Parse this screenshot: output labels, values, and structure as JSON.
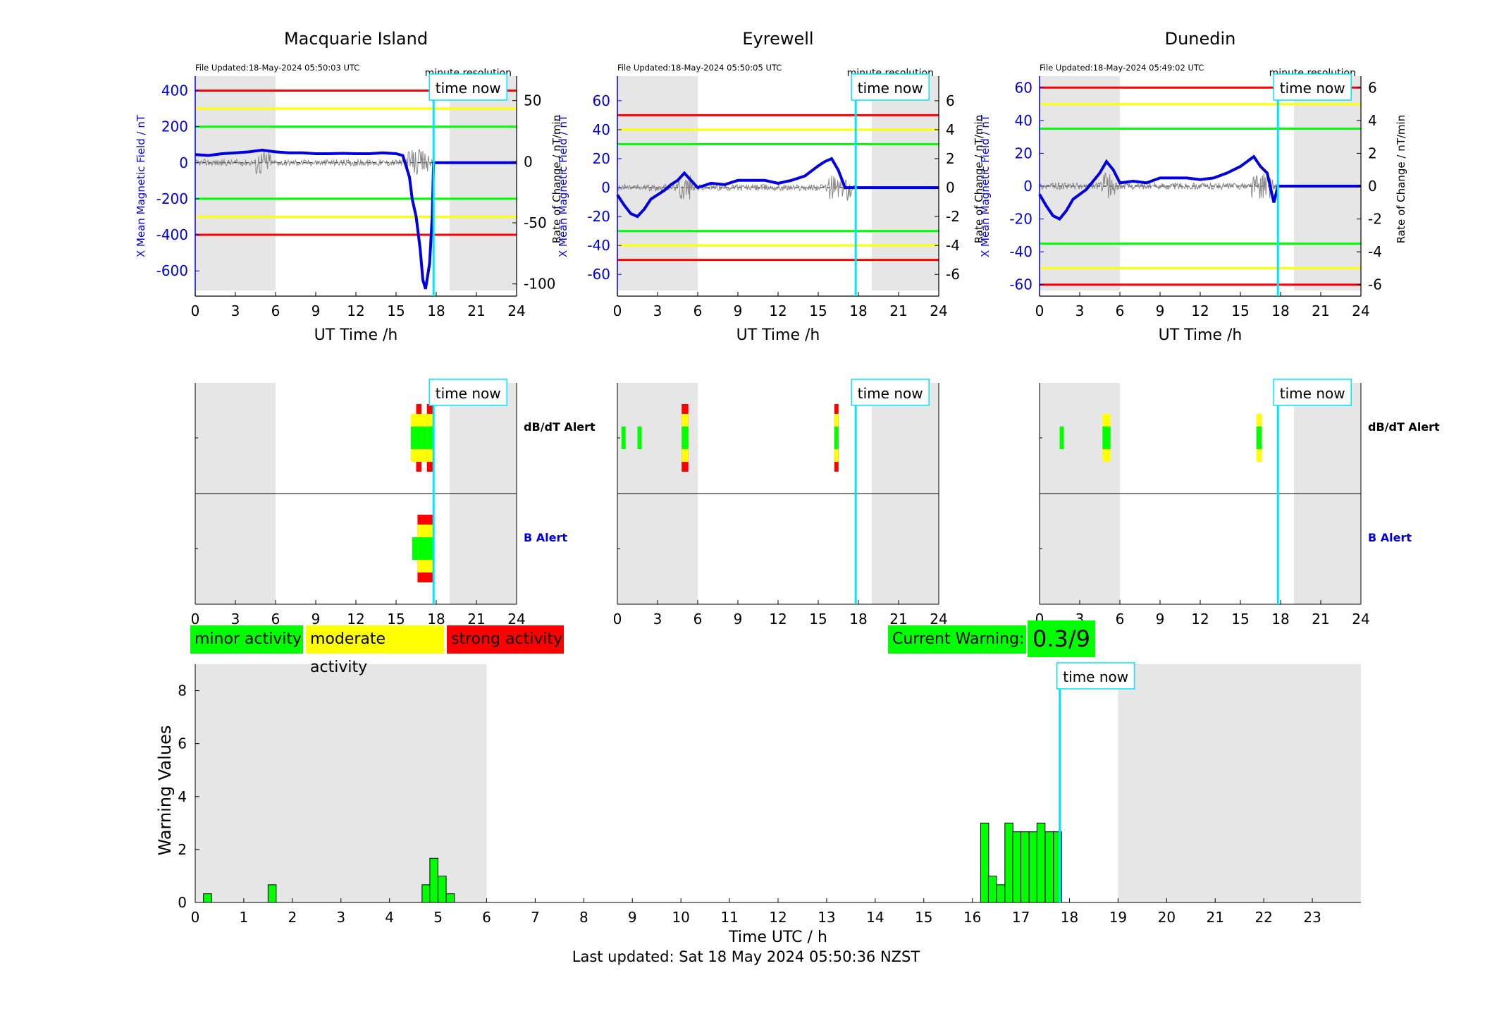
{
  "stations": [
    {
      "title": "Macquarie Island",
      "file_updated": "File Updated:18-May-2024 05:50:03 UTC",
      "resolution": "minute resolution",
      "left_label": "X Mean Magnetic Field / nT",
      "right_label": "Rate of Change / nT/min",
      "xlabel": "UT Time /h",
      "left_ticks": [
        "400",
        "200",
        "0",
        "-200",
        "-400",
        "-600"
      ],
      "right_ticks": [
        "50",
        "0",
        "-50",
        "-100"
      ],
      "x_ticks": [
        "0",
        "3",
        "6",
        "9",
        "12",
        "15",
        "18",
        "21",
        "24"
      ],
      "time_now": "time now",
      "alert_label_dbdt": "dB/dT Alert",
      "alert_label_b": "B Alert",
      "chart_data": {
        "type": "line",
        "xlim": [
          0,
          24
        ],
        "ylim_left": [
          -740,
          480
        ],
        "ylim_right_approx": [
          -110,
          70
        ],
        "thresholds_left": {
          "red": [
            400,
            -400
          ],
          "yellow": [
            300,
            -300
          ],
          "green": [
            200,
            -200
          ]
        },
        "time_now_h": 17.8,
        "night_shading_h": [
          [
            0,
            6
          ],
          [
            19,
            24
          ]
        ],
        "series": [
          {
            "name": "X Mean Magnetic Field",
            "color": "#0000e0",
            "x": [
              0,
              1,
              2,
              3,
              4,
              5,
              6,
              7,
              8,
              9,
              10,
              11,
              12,
              13,
              14,
              15,
              15.5,
              16,
              16.2,
              16.5,
              16.8,
              17,
              17.2,
              17.5,
              17.7,
              17.8,
              18,
              24
            ],
            "y": [
              45,
              40,
              50,
              55,
              60,
              70,
              60,
              55,
              55,
              50,
              50,
              52,
              50,
              50,
              55,
              50,
              40,
              -80,
              -200,
              -300,
              -480,
              -650,
              -700,
              -560,
              -300,
              0,
              0,
              0
            ]
          }
        ],
        "dbdt_alert": [
          {
            "start": 16.1,
            "end": 16.5,
            "level": "yellow"
          },
          {
            "start": 16.5,
            "end": 16.9,
            "level": "red"
          },
          {
            "start": 16.9,
            "end": 17.3,
            "level": "yellow"
          },
          {
            "start": 17.3,
            "end": 17.8,
            "level": "red"
          }
        ],
        "b_alert": [
          {
            "start": 16.2,
            "end": 16.6,
            "level": "green"
          },
          {
            "start": 16.6,
            "end": 17.8,
            "level": "red"
          }
        ]
      }
    },
    {
      "title": "Eyrewell",
      "file_updated": "File Updated:18-May-2024 05:50:05 UTC",
      "resolution": "minute resolution",
      "left_label": "X Mean Magnetic Field / nT",
      "right_label": "Rate of Change / nT/min",
      "xlabel": "UT Time /h",
      "left_ticks": [
        "60",
        "40",
        "20",
        "0",
        "-20",
        "-40",
        "-60"
      ],
      "right_ticks": [
        "6",
        "4",
        "2",
        "0",
        "-2",
        "-4",
        "-6"
      ],
      "x_ticks": [
        "0",
        "3",
        "6",
        "9",
        "12",
        "15",
        "18",
        "21",
        "24"
      ],
      "time_now": "time now",
      "alert_label_dbdt": "dB/dT Alert",
      "alert_label_b": "B Alert",
      "chart_data": {
        "type": "line",
        "xlim": [
          0,
          24
        ],
        "ylim_left": [
          -75,
          77
        ],
        "ylim_right": [
          -7.5,
          7.7
        ],
        "thresholds_left": {
          "red": [
            50,
            -50
          ],
          "yellow": [
            40,
            -40
          ],
          "green": [
            30,
            -30
          ]
        },
        "time_now_h": 17.8,
        "night_shading_h": [
          [
            0,
            6
          ],
          [
            19,
            24
          ]
        ],
        "series": [
          {
            "name": "X Mean Magnetic Field",
            "color": "#0000e0",
            "x": [
              0,
              0.5,
              1,
              1.5,
              2,
              2.5,
              3,
              3.5,
              4,
              4.5,
              5,
              5.5,
              6,
              7,
              8,
              9,
              10,
              11,
              12,
              13,
              14,
              15,
              15.5,
              16,
              16.5,
              17,
              18,
              24
            ],
            "y": [
              -5,
              -12,
              -18,
              -20,
              -15,
              -8,
              -5,
              -2,
              2,
              5,
              10,
              5,
              0,
              3,
              2,
              5,
              5,
              5,
              3,
              5,
              8,
              15,
              18,
              20,
              12,
              0,
              0,
              0
            ]
          }
        ],
        "dbdt_alert": [
          {
            "start": 0.3,
            "end": 0.5,
            "level": "green"
          },
          {
            "start": 1.5,
            "end": 1.7,
            "level": "green"
          },
          {
            "start": 4.8,
            "end": 5.3,
            "level": "red"
          },
          {
            "start": 16.2,
            "end": 16.5,
            "level": "red"
          }
        ],
        "b_alert": []
      }
    },
    {
      "title": "Dunedin",
      "file_updated": "File Updated:18-May-2024 05:49:02 UTC",
      "resolution": "minute resolution",
      "left_label": "X Mean Magnetic Field / nT",
      "right_label": "Rate of Change / nT/min",
      "xlabel": "UT Time /h",
      "left_ticks": [
        "60",
        "40",
        "20",
        "0",
        "-20",
        "-40",
        "-60"
      ],
      "right_ticks": [
        "6",
        "4",
        "2",
        "0",
        "-2",
        "-4",
        "-6"
      ],
      "x_ticks": [
        "0",
        "3",
        "6",
        "9",
        "12",
        "15",
        "18",
        "21",
        "24"
      ],
      "time_now": "time now",
      "alert_label_dbdt": "dB/dT Alert",
      "alert_label_b": "B Alert",
      "chart_data": {
        "type": "line",
        "xlim": [
          0,
          24
        ],
        "ylim_left": [
          -67,
          67
        ],
        "ylim_right": [
          -6.7,
          6.7
        ],
        "thresholds_left": {
          "red": [
            60,
            -60
          ],
          "yellow": [
            50,
            -50
          ],
          "green": [
            35,
            -35
          ]
        },
        "time_now_h": 17.8,
        "night_shading_h": [
          [
            0,
            6
          ],
          [
            19,
            24
          ]
        ],
        "series": [
          {
            "name": "X Mean Magnetic Field",
            "color": "#0000e0",
            "x": [
              0,
              0.5,
              1,
              1.5,
              2,
              2.5,
              3,
              3.5,
              4,
              4.5,
              5,
              5.5,
              6,
              7,
              8,
              9,
              10,
              11,
              12,
              13,
              14,
              15,
              15.5,
              16,
              16.5,
              17,
              17.5,
              17.8,
              18,
              24
            ],
            "y": [
              -5,
              -12,
              -18,
              -20,
              -15,
              -8,
              -5,
              -2,
              3,
              8,
              15,
              10,
              2,
              3,
              2,
              5,
              5,
              5,
              4,
              5,
              8,
              12,
              15,
              18,
              12,
              8,
              -10,
              0,
              0,
              0
            ]
          }
        ],
        "dbdt_alert": [
          {
            "start": 1.5,
            "end": 1.7,
            "level": "green"
          },
          {
            "start": 4.7,
            "end": 5.3,
            "level": "yellow"
          },
          {
            "start": 16.2,
            "end": 16.6,
            "level": "yellow"
          }
        ],
        "b_alert": []
      }
    }
  ],
  "legend": {
    "minor": "minor activity",
    "moderate": "moderate activity",
    "strong": "strong activity",
    "minor_color": "#00ff00",
    "moderate_color": "#ffff00",
    "strong_color": "#ff0000"
  },
  "current_warning": {
    "label": "Current Warning:",
    "value": "0.3/9"
  },
  "warning_chart": {
    "ylabel": "Warning Values",
    "xlabel": "Time UTC / h",
    "time_now": "time now",
    "y_ticks": [
      "0",
      "2",
      "4",
      "6",
      "8"
    ],
    "x_ticks": [
      "0",
      "1",
      "2",
      "3",
      "4",
      "5",
      "6",
      "7",
      "8",
      "9",
      "10",
      "11",
      "12",
      "13",
      "14",
      "15",
      "16",
      "17",
      "18",
      "19",
      "20",
      "21",
      "22",
      "23"
    ]
  },
  "chart_data": {
    "type": "bar",
    "title": "",
    "xlabel": "Time UTC / h",
    "ylabel": "Warning Values",
    "xlim": [
      0,
      24
    ],
    "ylim": [
      0,
      9
    ],
    "bar_width_h": 0.1667,
    "time_now_h": 17.8,
    "night_shading_h": [
      [
        0,
        6
      ],
      [
        19,
        24
      ]
    ],
    "bar_color": "#00ff00",
    "bars": [
      {
        "start": 0.17,
        "value": 0.33
      },
      {
        "start": 1.5,
        "value": 0.67
      },
      {
        "start": 4.67,
        "value": 0.67
      },
      {
        "start": 4.83,
        "value": 1.67
      },
      {
        "start": 5.0,
        "value": 1.0
      },
      {
        "start": 5.17,
        "value": 0.33
      },
      {
        "start": 16.17,
        "value": 3.0
      },
      {
        "start": 16.33,
        "value": 1.0
      },
      {
        "start": 16.5,
        "value": 0.67
      },
      {
        "start": 16.67,
        "value": 3.0
      },
      {
        "start": 16.83,
        "value": 2.67
      },
      {
        "start": 17.0,
        "value": 2.67
      },
      {
        "start": 17.17,
        "value": 2.67
      },
      {
        "start": 17.33,
        "value": 3.0
      },
      {
        "start": 17.5,
        "value": 2.67
      },
      {
        "start": 17.67,
        "value": 2.67
      }
    ]
  },
  "footer": {
    "last_updated": "Last updated: Sat 18 May 2024 05:50:36 NZST"
  }
}
